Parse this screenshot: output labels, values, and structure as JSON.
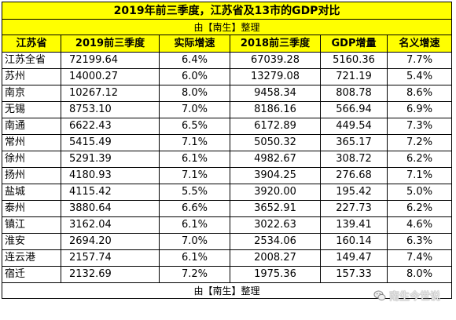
{
  "title": "2019年前三季度，江苏省及13市的GDP对比",
  "subtitle": "由【南生】整理",
  "columns": [
    "江苏省",
    "2019前三季度",
    "实际增速",
    "2018前三季度",
    "GDP增量",
    "名义增速"
  ],
  "rows": [
    {
      "name": "江苏全省",
      "v2019": "72199.64",
      "real_growth": "6.4%",
      "v2018": "67039.28",
      "increment": "5160.36",
      "nominal_growth": "7.7%"
    },
    {
      "name": "苏州",
      "v2019": "14000.27",
      "real_growth": "6.0%",
      "v2018": "13279.08",
      "increment": "721.19",
      "nominal_growth": "5.4%"
    },
    {
      "name": "南京",
      "v2019": "10267.12",
      "real_growth": "8.0%",
      "v2018": "9458.34",
      "increment": "808.78",
      "nominal_growth": "8.6%"
    },
    {
      "name": "无锡",
      "v2019": "8753.10",
      "real_growth": "7.0%",
      "v2018": "8186.16",
      "increment": "566.94",
      "nominal_growth": "6.9%"
    },
    {
      "name": "南通",
      "v2019": "6622.43",
      "real_growth": "6.5%",
      "v2018": "6172.89",
      "increment": "449.54",
      "nominal_growth": "7.3%"
    },
    {
      "name": "常州",
      "v2019": "5415.49",
      "real_growth": "7.1%",
      "v2018": "5050.32",
      "increment": "365.17",
      "nominal_growth": "7.2%"
    },
    {
      "name": "徐州",
      "v2019": "5291.39",
      "real_growth": "6.1%",
      "v2018": "4982.67",
      "increment": "308.72",
      "nominal_growth": "6.2%"
    },
    {
      "name": "扬州",
      "v2019": "4180.93",
      "real_growth": "7.1%",
      "v2018": "3904.25",
      "increment": "276.68",
      "nominal_growth": "7.1%"
    },
    {
      "name": "盐城",
      "v2019": "4115.42",
      "real_growth": "5.5%",
      "v2018": "3920.00",
      "increment": "195.42",
      "nominal_growth": "5.0%"
    },
    {
      "name": "泰州",
      "v2019": "3880.64",
      "real_growth": "6.6%",
      "v2018": "3652.91",
      "increment": "227.73",
      "nominal_growth": "6.2%"
    },
    {
      "name": "镇江",
      "v2019": "3162.04",
      "real_growth": "6.1%",
      "v2018": "3022.63",
      "increment": "139.41",
      "nominal_growth": "4.6%"
    },
    {
      "name": "淮安",
      "v2019": "2694.20",
      "real_growth": "7.0%",
      "v2018": "2534.06",
      "increment": "160.14",
      "nominal_growth": "6.3%"
    },
    {
      "name": "连云港",
      "v2019": "2157.74",
      "real_growth": "6.1%",
      "v2018": "2008.27",
      "increment": "149.47",
      "nominal_growth": "7.4%"
    },
    {
      "name": "宿迁",
      "v2019": "2132.69",
      "real_growth": "7.2%",
      "v2018": "1975.36",
      "increment": "157.33",
      "nominal_growth": "8.0%"
    }
  ],
  "footer": "由【南生】整理",
  "watermark": {
    "icon": "wechat-icon",
    "text": "南生今世说"
  },
  "colors": {
    "header_bg": "#ffff00",
    "border": "#000000"
  }
}
